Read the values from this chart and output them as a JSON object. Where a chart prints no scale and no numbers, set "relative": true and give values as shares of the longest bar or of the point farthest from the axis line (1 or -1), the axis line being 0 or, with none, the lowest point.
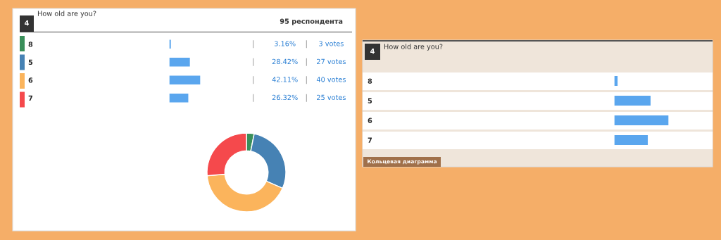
{
  "chart_data": [
    {
      "type": "bar",
      "orientation": "horizontal",
      "title": "How old are you?",
      "categories": [
        "8",
        "5",
        "6",
        "7"
      ],
      "values": [
        3.16,
        28.42,
        42.11,
        26.32
      ],
      "color": "#5aa6ee",
      "tick_labels": "y",
      "value_labels": [
        "3.16%",
        "28.42%",
        "42.11%",
        "26.32%"
      ],
      "annotations": [
        "4",
        "95 респондента",
        "3 votes",
        "27 votes",
        "40 votes",
        "25 votes"
      ]
    },
    {
      "type": "donut",
      "categories": [
        null,
        null,
        null,
        null
      ],
      "values": [
        3.16,
        28.42,
        42.11,
        26.32
      ],
      "colors": [
        "#3a8f5a",
        "#4682b4",
        "#fbb45c",
        "#f5494c"
      ]
    },
    {
      "type": "bar",
      "orientation": "horizontal",
      "relative": true,
      "categories": [
        "8",
        "5",
        "6",
        "7"
      ],
      "values": [
        0.075,
        0.675,
        1,
        0.625
      ],
      "color": "#5aa6ee",
      "tick_labels": "y",
      "annotations": [
        "4",
        "How old are you?",
        "Кольцевая диаграмма"
      ]
    }
  ]
}
